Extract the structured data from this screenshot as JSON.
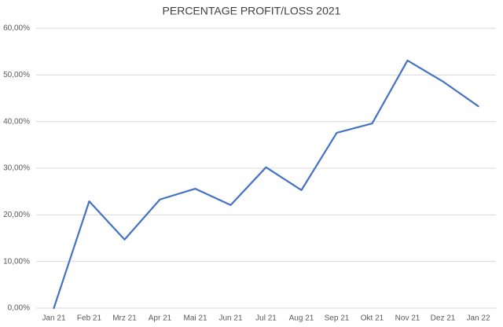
{
  "chart_data": {
    "type": "line",
    "title": "PERCENTAGE PROFIT/LOSS 2021",
    "categories": [
      "Jan 21",
      "Feb 21",
      "Mrz 21",
      "Apr 21",
      "Mai 21",
      "Jun 21",
      "Jul 21",
      "Aug 21",
      "Sep 21",
      "Okt 21",
      "Nov 21",
      "Dez 21",
      "Jan 22"
    ],
    "values": [
      0,
      22.9,
      14.7,
      23.3,
      25.6,
      22.1,
      30.2,
      25.3,
      37.6,
      39.6,
      53.1,
      48.6,
      43.3
    ],
    "color": "#4472c4",
    "ylim": [
      0,
      60
    ],
    "yticks": [
      {
        "value": 0,
        "label": "0,00%"
      },
      {
        "value": 10,
        "label": "10,00%"
      },
      {
        "value": 20,
        "label": "20,00%"
      },
      {
        "value": 30,
        "label": "30,00%"
      },
      {
        "value": 40,
        "label": "40,00%"
      },
      {
        "value": 50,
        "label": "50,00%"
      },
      {
        "value": 60,
        "label": "60,00%"
      }
    ],
    "grid": true
  }
}
